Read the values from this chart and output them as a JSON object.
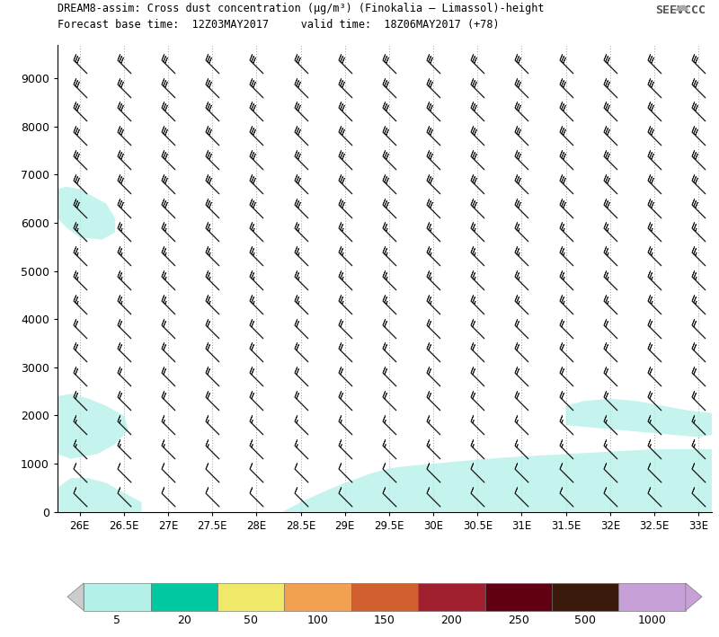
{
  "title_line1": "DREAM8-assim: Cross dust concentration (μg/m³) (Finokalia – Limassol)-height",
  "title_line2": "Forecast base time:  12Z03MAY2017     valid time:  18Z06MAY2017 (+78)",
  "xlabel_ticks": [
    "26E",
    "26.5E",
    "27E",
    "27.5E",
    "28E",
    "28.5E",
    "29E",
    "29.5E",
    "30E",
    "30.5E",
    "31E",
    "31.5E",
    "32E",
    "32.5E",
    "33E"
  ],
  "xlabel_vals": [
    26.0,
    26.5,
    27.0,
    27.5,
    28.0,
    28.5,
    29.0,
    29.5,
    30.0,
    30.5,
    31.0,
    31.5,
    32.0,
    32.5,
    33.0
  ],
  "yticks": [
    0,
    1000,
    2000,
    3000,
    4000,
    5000,
    6000,
    7000,
    8000,
    9000
  ],
  "ylim": [
    0,
    9700
  ],
  "xlim": [
    25.75,
    33.15
  ],
  "colorbar_levels": [
    5,
    20,
    50,
    100,
    150,
    200,
    250,
    500,
    1000
  ],
  "colorbar_colors": [
    "#b2f0e8",
    "#00c8a0",
    "#f0e868",
    "#f0a050",
    "#d06030",
    "#a02030",
    "#600010",
    "#3a1a0a",
    "#c8a0d8"
  ],
  "bg_color": "#ffffff",
  "plot_bg": "#ffffff",
  "barb_color": "#1a1a1a",
  "vline_color": "#b0b0b0",
  "dust_patch_color": "#b2f0e8",
  "dust_patch_alpha": 0.75,
  "dust_patches": [
    [
      [
        25.75,
        6700
      ],
      [
        25.85,
        6750
      ],
      [
        26.0,
        6700
      ],
      [
        26.1,
        6600
      ],
      [
        26.3,
        6400
      ],
      [
        26.4,
        6100
      ],
      [
        26.4,
        5800
      ],
      [
        26.25,
        5650
      ],
      [
        26.0,
        5700
      ],
      [
        25.85,
        5900
      ],
      [
        25.75,
        6100
      ]
    ],
    [
      [
        25.75,
        2400
      ],
      [
        25.9,
        2450
      ],
      [
        26.1,
        2350
      ],
      [
        26.3,
        2200
      ],
      [
        26.5,
        2000
      ],
      [
        26.55,
        1700
      ],
      [
        26.4,
        1400
      ],
      [
        26.2,
        1200
      ],
      [
        25.9,
        1100
      ],
      [
        25.75,
        1200
      ]
    ],
    [
      [
        25.75,
        500
      ],
      [
        25.75,
        0
      ],
      [
        26.7,
        0
      ],
      [
        26.7,
        200
      ],
      [
        26.5,
        400
      ],
      [
        26.3,
        600
      ],
      [
        26.1,
        700
      ],
      [
        25.9,
        700
      ],
      [
        25.75,
        500
      ]
    ],
    [
      [
        28.3,
        0
      ],
      [
        28.5,
        200
      ],
      [
        28.8,
        450
      ],
      [
        29.0,
        600
      ],
      [
        29.3,
        800
      ],
      [
        29.5,
        900
      ],
      [
        29.7,
        950
      ],
      [
        30.0,
        1000
      ],
      [
        30.3,
        1050
      ],
      [
        30.6,
        1100
      ],
      [
        31.0,
        1150
      ],
      [
        31.5,
        1200
      ],
      [
        32.0,
        1250
      ],
      [
        32.5,
        1300
      ],
      [
        33.15,
        1300
      ],
      [
        33.15,
        0
      ]
    ],
    [
      [
        31.5,
        2200
      ],
      [
        31.7,
        2300
      ],
      [
        32.0,
        2350
      ],
      [
        32.3,
        2300
      ],
      [
        32.6,
        2200
      ],
      [
        32.9,
        2100
      ],
      [
        33.15,
        2050
      ],
      [
        33.15,
        1600
      ],
      [
        33.0,
        1550
      ],
      [
        32.7,
        1600
      ],
      [
        32.4,
        1650
      ],
      [
        32.1,
        1700
      ],
      [
        31.8,
        1750
      ],
      [
        31.5,
        1800
      ]
    ]
  ],
  "barb_lons": [
    26.0,
    26.5,
    27.0,
    27.5,
    28.0,
    28.5,
    29.0,
    29.5,
    30.0,
    30.5,
    31.0,
    31.5,
    32.0,
    32.5,
    33.0
  ],
  "barb_alts": [
    250,
    750,
    1250,
    1750,
    2250,
    2750,
    3250,
    3750,
    4250,
    4750,
    5250,
    5750,
    6250,
    6750,
    7250,
    7750,
    8250,
    8750,
    9250
  ]
}
